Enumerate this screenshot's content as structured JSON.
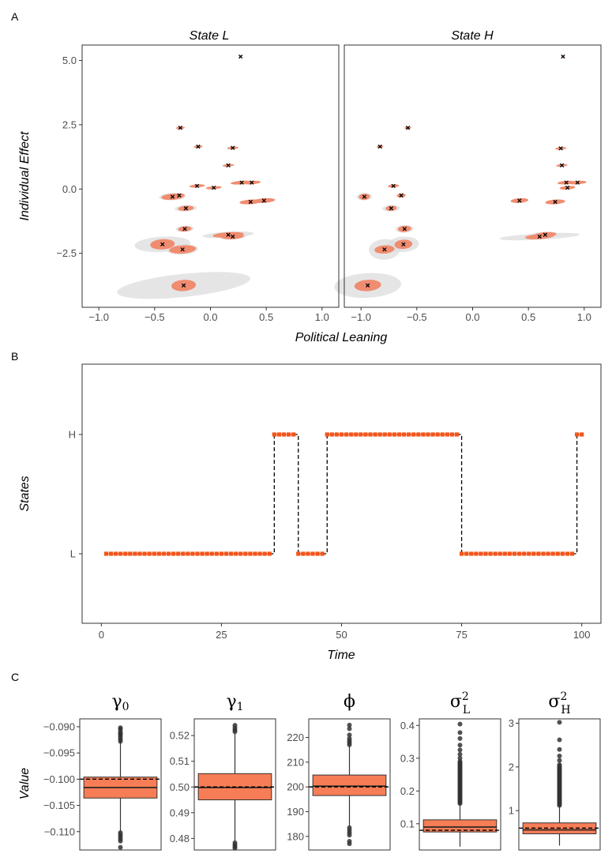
{
  "chart_data": [
    {
      "panel": "A",
      "type": "scatter",
      "facets": [
        "State L",
        "State H"
      ],
      "xlabel": "Political Leaning",
      "ylabel": "Individual Effect",
      "xlim": [
        -1.15,
        1.15
      ],
      "ylim": [
        -4.6,
        5.6
      ],
      "xticks": [
        "−1.0",
        "−0.5",
        "0.0",
        "0.5",
        "1.0"
      ],
      "xtick_values": [
        -1.0,
        -0.5,
        0.0,
        0.5,
        1.0
      ],
      "yticks": [
        "−2.5",
        "0.0",
        "2.5",
        "5.0"
      ],
      "ytick_values": [
        -2.5,
        0.0,
        2.5,
        5.0
      ],
      "colors": {
        "posterior": "#f08c70",
        "prior": "#dcdcdc",
        "marker": "#000000"
      },
      "points_L": [
        {
          "x": 0.27,
          "y": 5.15,
          "rx": 0.012,
          "ry": 0.05,
          "grx": 0.0,
          "gry": 0.0
        },
        {
          "x": -0.27,
          "y": 2.38,
          "rx": 0.04,
          "ry": 0.05,
          "grx": 0.0,
          "gry": 0.0
        },
        {
          "x": -0.11,
          "y": 1.65,
          "rx": 0.04,
          "ry": 0.05,
          "grx": 0.0,
          "gry": 0.0
        },
        {
          "x": 0.2,
          "y": 1.6,
          "rx": 0.05,
          "ry": 0.05,
          "grx": 0.0,
          "gry": 0.0
        },
        {
          "x": 0.16,
          "y": 0.92,
          "rx": 0.05,
          "ry": 0.05,
          "grx": 0.0,
          "gry": 0.0
        },
        {
          "x": -0.12,
          "y": 0.12,
          "rx": 0.07,
          "ry": 0.06,
          "grx": 0.0,
          "gry": 0.0
        },
        {
          "x": 0.03,
          "y": 0.05,
          "rx": 0.07,
          "ry": 0.06,
          "grx": 0.0,
          "gry": 0.0
        },
        {
          "x": 0.28,
          "y": 0.25,
          "rx": 0.1,
          "ry": 0.07,
          "grx": 0.0,
          "gry": 0.0
        },
        {
          "x": 0.37,
          "y": 0.25,
          "rx": 0.08,
          "ry": 0.07,
          "grx": 0.0,
          "gry": 0.0
        },
        {
          "x": -0.28,
          "y": -0.25,
          "rx": 0.05,
          "ry": 0.08,
          "grx": 0.0,
          "gry": 0.0
        },
        {
          "x": -0.34,
          "y": -0.3,
          "rx": 0.1,
          "ry": 0.12,
          "grx": 0.12,
          "gry": 0.14
        },
        {
          "x": 0.36,
          "y": -0.5,
          "rx": 0.1,
          "ry": 0.09,
          "grx": 0.0,
          "gry": 0.0
        },
        {
          "x": 0.48,
          "y": -0.45,
          "rx": 0.1,
          "ry": 0.09,
          "grx": 0.0,
          "gry": 0.0
        },
        {
          "x": -0.22,
          "y": -0.75,
          "rx": 0.07,
          "ry": 0.1,
          "grx": 0.1,
          "gry": 0.12
        },
        {
          "x": -0.23,
          "y": -1.55,
          "rx": 0.06,
          "ry": 0.1,
          "grx": 0.08,
          "gry": 0.12
        },
        {
          "x": 0.16,
          "y": -1.78,
          "rx": 0.14,
          "ry": 0.1,
          "grx": 0.23,
          "gry": 0.12
        },
        {
          "x": 0.2,
          "y": -1.85,
          "rx": 0.1,
          "ry": 0.1,
          "grx": 0.12,
          "gry": 0.12
        },
        {
          "x": -0.43,
          "y": -2.15,
          "rx": 0.11,
          "ry": 0.2,
          "grx": 0.25,
          "gry": 0.3
        },
        {
          "x": -0.25,
          "y": -2.35,
          "rx": 0.12,
          "ry": 0.16,
          "grx": 0.14,
          "gry": 0.2
        },
        {
          "x": -0.24,
          "y": -3.75,
          "rx": 0.11,
          "ry": 0.22,
          "grx": 0.6,
          "gry": 0.45
        }
      ],
      "points_H": [
        {
          "x": 0.81,
          "y": 5.15,
          "rx": 0.012,
          "ry": 0.05,
          "grx": 0.0,
          "gry": 0.0
        },
        {
          "x": -0.58,
          "y": 2.38,
          "rx": 0.03,
          "ry": 0.05,
          "grx": 0.0,
          "gry": 0.0
        },
        {
          "x": -0.83,
          "y": 1.65,
          "rx": 0.03,
          "ry": 0.05,
          "grx": 0.0,
          "gry": 0.0
        },
        {
          "x": 0.79,
          "y": 1.58,
          "rx": 0.05,
          "ry": 0.05,
          "grx": 0.0,
          "gry": 0.0
        },
        {
          "x": 0.8,
          "y": 0.92,
          "rx": 0.05,
          "ry": 0.05,
          "grx": 0.0,
          "gry": 0.0
        },
        {
          "x": -0.71,
          "y": 0.12,
          "rx": 0.05,
          "ry": 0.06,
          "grx": 0.0,
          "gry": 0.0
        },
        {
          "x": 0.84,
          "y": 0.25,
          "rx": 0.08,
          "ry": 0.07,
          "grx": 0.0,
          "gry": 0.0
        },
        {
          "x": 0.94,
          "y": 0.25,
          "rx": 0.08,
          "ry": 0.07,
          "grx": 0.0,
          "gry": 0.0
        },
        {
          "x": 0.85,
          "y": 0.05,
          "rx": 0.07,
          "ry": 0.07,
          "grx": 0.0,
          "gry": 0.0
        },
        {
          "x": -0.64,
          "y": -0.25,
          "rx": 0.04,
          "ry": 0.08,
          "grx": 0.0,
          "gry": 0.0
        },
        {
          "x": -0.97,
          "y": -0.3,
          "rx": 0.05,
          "ry": 0.12,
          "grx": 0.07,
          "gry": 0.14
        },
        {
          "x": 0.42,
          "y": -0.45,
          "rx": 0.08,
          "ry": 0.09,
          "grx": 0.0,
          "gry": 0.0
        },
        {
          "x": 0.74,
          "y": -0.5,
          "rx": 0.09,
          "ry": 0.09,
          "grx": 0.0,
          "gry": 0.0
        },
        {
          "x": -0.73,
          "y": -0.75,
          "rx": 0.05,
          "ry": 0.1,
          "grx": 0.08,
          "gry": 0.12
        },
        {
          "x": -0.61,
          "y": -1.55,
          "rx": 0.06,
          "ry": 0.12,
          "grx": 0.08,
          "gry": 0.15
        },
        {
          "x": 0.6,
          "y": -1.85,
          "rx": 0.13,
          "ry": 0.1,
          "grx": 0.36,
          "gry": 0.12
        },
        {
          "x": 0.65,
          "y": -1.78,
          "rx": 0.1,
          "ry": 0.1,
          "grx": 0.12,
          "gry": 0.12
        },
        {
          "x": -0.62,
          "y": -2.15,
          "rx": 0.08,
          "ry": 0.18,
          "grx": 0.14,
          "gry": 0.3
        },
        {
          "x": -0.79,
          "y": -2.35,
          "rx": 0.09,
          "ry": 0.16,
          "grx": 0.14,
          "gry": 0.4
        },
        {
          "x": -0.94,
          "y": -3.75,
          "rx": 0.12,
          "ry": 0.22,
          "grx": 0.3,
          "gry": 0.48
        }
      ]
    },
    {
      "panel": "B",
      "type": "line",
      "xlabel": "Time",
      "ylabel": "States",
      "xlim": [
        -4,
        104
      ],
      "xticks": [
        "0",
        "25",
        "50",
        "75",
        "100"
      ],
      "xtick_values": [
        0,
        25,
        50,
        75,
        100
      ],
      "yticks": [
        "L",
        "H"
      ],
      "state_segments": [
        {
          "state": "L",
          "from": 1,
          "to": 35
        },
        {
          "state": "H",
          "from": 36,
          "to": 40
        },
        {
          "state": "L",
          "from": 41,
          "to": 46
        },
        {
          "state": "H",
          "from": 47,
          "to": 74
        },
        {
          "state": "L",
          "from": 75,
          "to": 98
        },
        {
          "state": "H",
          "from": 99,
          "to": 100
        }
      ],
      "colors": {
        "point": "#f1561d",
        "line": "#000000"
      }
    },
    {
      "panel": "C",
      "type": "box",
      "ylabel": "Value",
      "colors": {
        "box": "#f67d56",
        "outlier": "#333333"
      },
      "boxes": [
        {
          "name": "gamma0",
          "symbol": "γ",
          "sub": "0",
          "sup": "",
          "ylim": [
            -0.1135,
            -0.0885
          ],
          "ticks": [
            -0.09,
            -0.095,
            -0.1,
            -0.105,
            -0.11
          ],
          "tick_labels": [
            "−0.090",
            "−0.095",
            "−0.100",
            "−0.105",
            "−0.110"
          ],
          "q1": -0.1036,
          "median": -0.1016,
          "q3": -0.0996,
          "whisker_low": -0.11,
          "whisker_high": -0.09,
          "true_value": -0.1,
          "outliers": [
            -0.0902,
            -0.0905,
            -0.091,
            -0.0913,
            -0.0916,
            -0.092,
            -0.0924,
            -0.0928,
            -0.1102,
            -0.1106,
            -0.111,
            -0.1114,
            -0.1118,
            -0.113
          ]
        },
        {
          "name": "gamma1",
          "symbol": "γ",
          "sub": "1",
          "sup": "",
          "ylim": [
            0.4755,
            0.5265
          ],
          "ticks": [
            0.52,
            0.51,
            0.5,
            0.49,
            0.48
          ],
          "tick_labels": [
            "0.52",
            "0.51",
            "0.50",
            "0.49",
            "0.48"
          ],
          "q1": 0.495,
          "median": 0.4998,
          "q3": 0.5052,
          "whisker_low": 0.479,
          "whisker_high": 0.521,
          "true_value": 0.5,
          "outliers": [
            0.5215,
            0.5222,
            0.523,
            0.524,
            0.4783,
            0.4775,
            0.4768,
            0.4762
          ]
        },
        {
          "name": "phi",
          "symbol": "ϕ",
          "sub": "",
          "sup": "",
          "ylim": [
            174.5,
            227.5
          ],
          "ticks": [
            220,
            210,
            200,
            190,
            180
          ],
          "tick_labels": [
            "220",
            "210",
            "200",
            "190",
            "180"
          ],
          "q1": 196.5,
          "median": 200.3,
          "q3": 204.8,
          "whisker_low": 184.0,
          "whisker_high": 216.5,
          "true_value": 200.0,
          "outliers": [
            217.0,
            217.8,
            218.6,
            219.5,
            221.0,
            223.5,
            225.0,
            183.5,
            182.5,
            181.5,
            180.5,
            178.0,
            177.0
          ]
        },
        {
          "name": "sigmaL2",
          "symbol": "σ",
          "sub": "L",
          "sup": "2",
          "ylim": [
            0.02,
            0.42
          ],
          "ticks": [
            0.4,
            0.3,
            0.2,
            0.1
          ],
          "tick_labels": [
            "0.4",
            "0.3",
            "0.2",
            "0.1"
          ],
          "q1": 0.075,
          "median": 0.09,
          "q3": 0.112,
          "whisker_low": 0.03,
          "whisker_high": 0.16,
          "true_value": 0.08,
          "outlier_dense_range": [
            0.162,
            0.29
          ],
          "outliers": [
            0.3,
            0.312,
            0.325,
            0.34,
            0.36,
            0.378,
            0.404
          ]
        },
        {
          "name": "sigmaH2",
          "symbol": "σ",
          "sub": "H",
          "sup": "2",
          "ylim": [
            0.1,
            3.1
          ],
          "ticks": [
            3,
            2,
            1
          ],
          "tick_labels": [
            "3",
            "2",
            "1"
          ],
          "q1": 0.47,
          "median": 0.56,
          "q3": 0.72,
          "whisker_low": 0.2,
          "whisker_high": 1.1,
          "true_value": 0.6,
          "outlier_dense_range": [
            1.12,
            2.05
          ],
          "outliers": [
            2.15,
            2.25,
            2.4,
            2.62,
            3.02
          ]
        }
      ]
    }
  ]
}
